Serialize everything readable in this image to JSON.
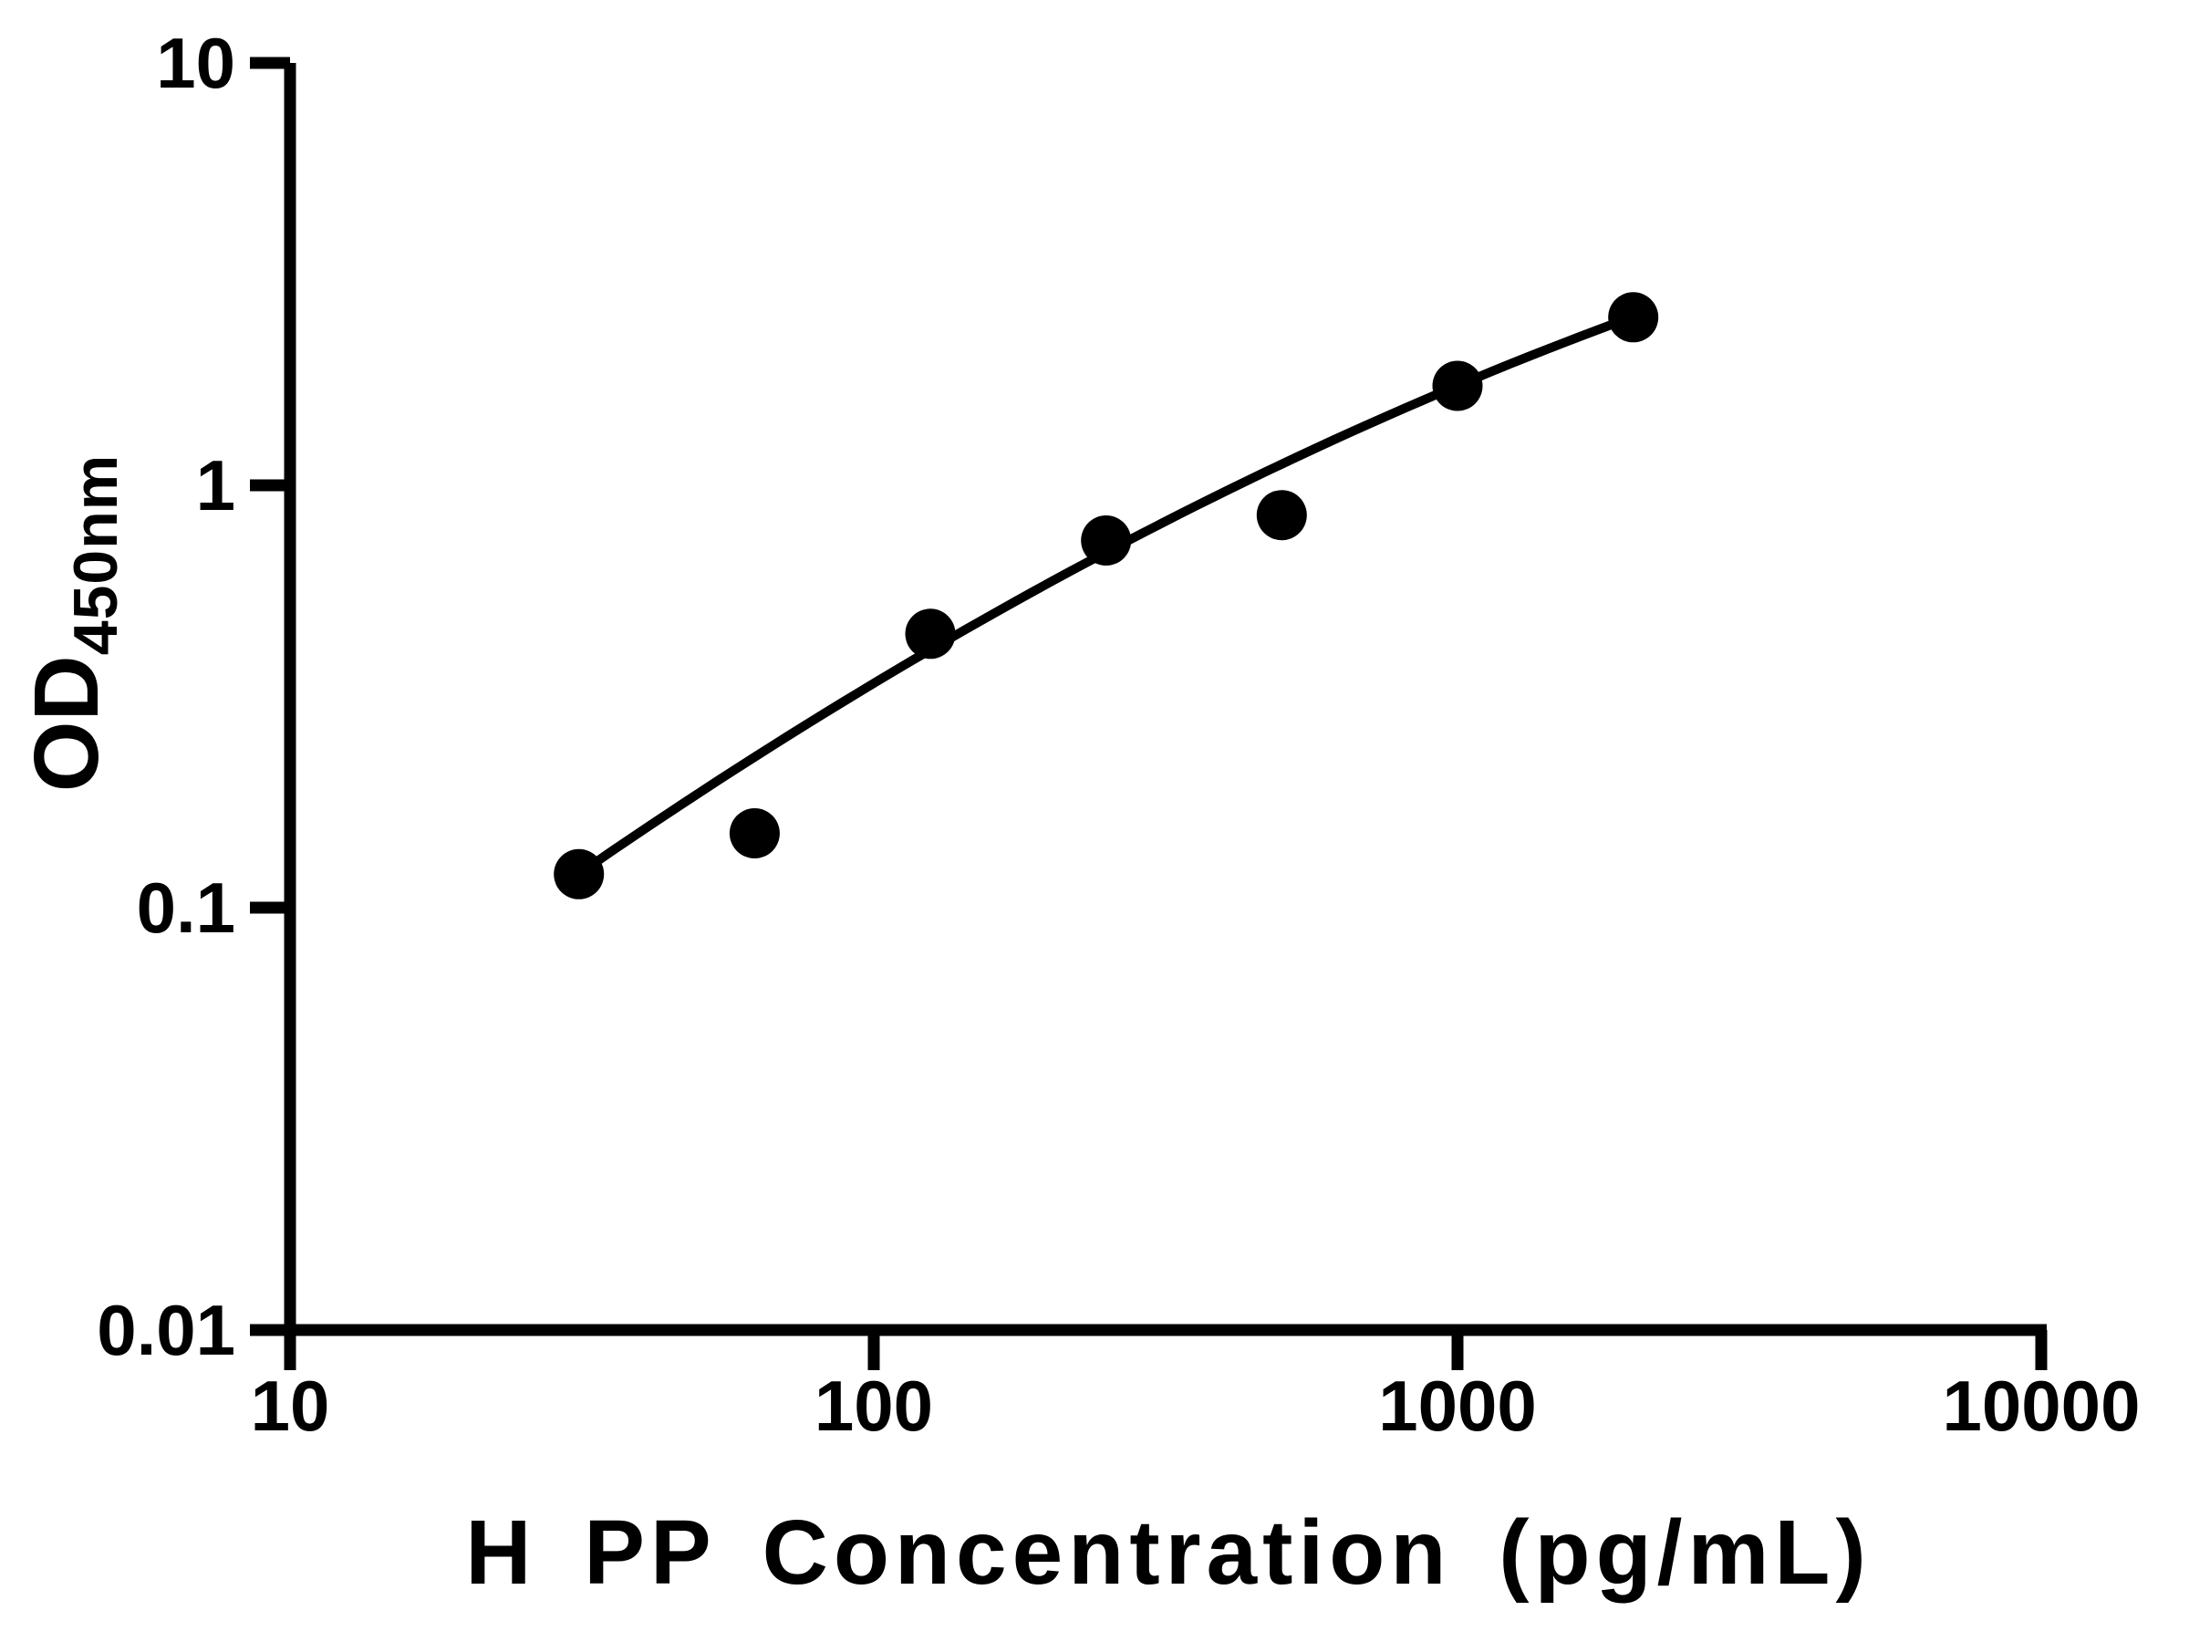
{
  "chart_data": {
    "type": "scatter",
    "title": "",
    "xlabel": "H PP Concentration (pg/mL)",
    "ylabel": "OD450nm",
    "ylabel_main": "OD",
    "ylabel_subscript": "450nm",
    "x_scale": "log10",
    "y_scale": "log10",
    "xlim": [
      10,
      10000
    ],
    "ylim": [
      0.01,
      10
    ],
    "x_ticks": [
      10,
      100,
      1000,
      10000
    ],
    "x_tick_labels": [
      "10",
      "100",
      "1000",
      "10000"
    ],
    "y_ticks": [
      10,
      1,
      0.1,
      0.01
    ],
    "y_tick_labels": [
      "10",
      "1",
      "0.1",
      "0.01"
    ],
    "grid": false,
    "legend": null,
    "background_color": "#ffffff",
    "marker_color": "#000000",
    "line_color": "#000000",
    "points": [
      {
        "x": 31.25,
        "y": 0.12
      },
      {
        "x": 62.5,
        "y": 0.15
      },
      {
        "x": 125,
        "y": 0.445
      },
      {
        "x": 250,
        "y": 0.74
      },
      {
        "x": 500,
        "y": 0.85
      },
      {
        "x": 1000,
        "y": 1.72
      },
      {
        "x": 2000,
        "y": 2.5
      }
    ],
    "fit_curve": {
      "description": "smooth fitted standard curve through the points, quadratic in log10-log10 space",
      "coefficients": {
        "a": -2.628,
        "b": 1.3294,
        "c": -0.1249
      },
      "x_start": 31.25,
      "x_end": 2000
    }
  }
}
